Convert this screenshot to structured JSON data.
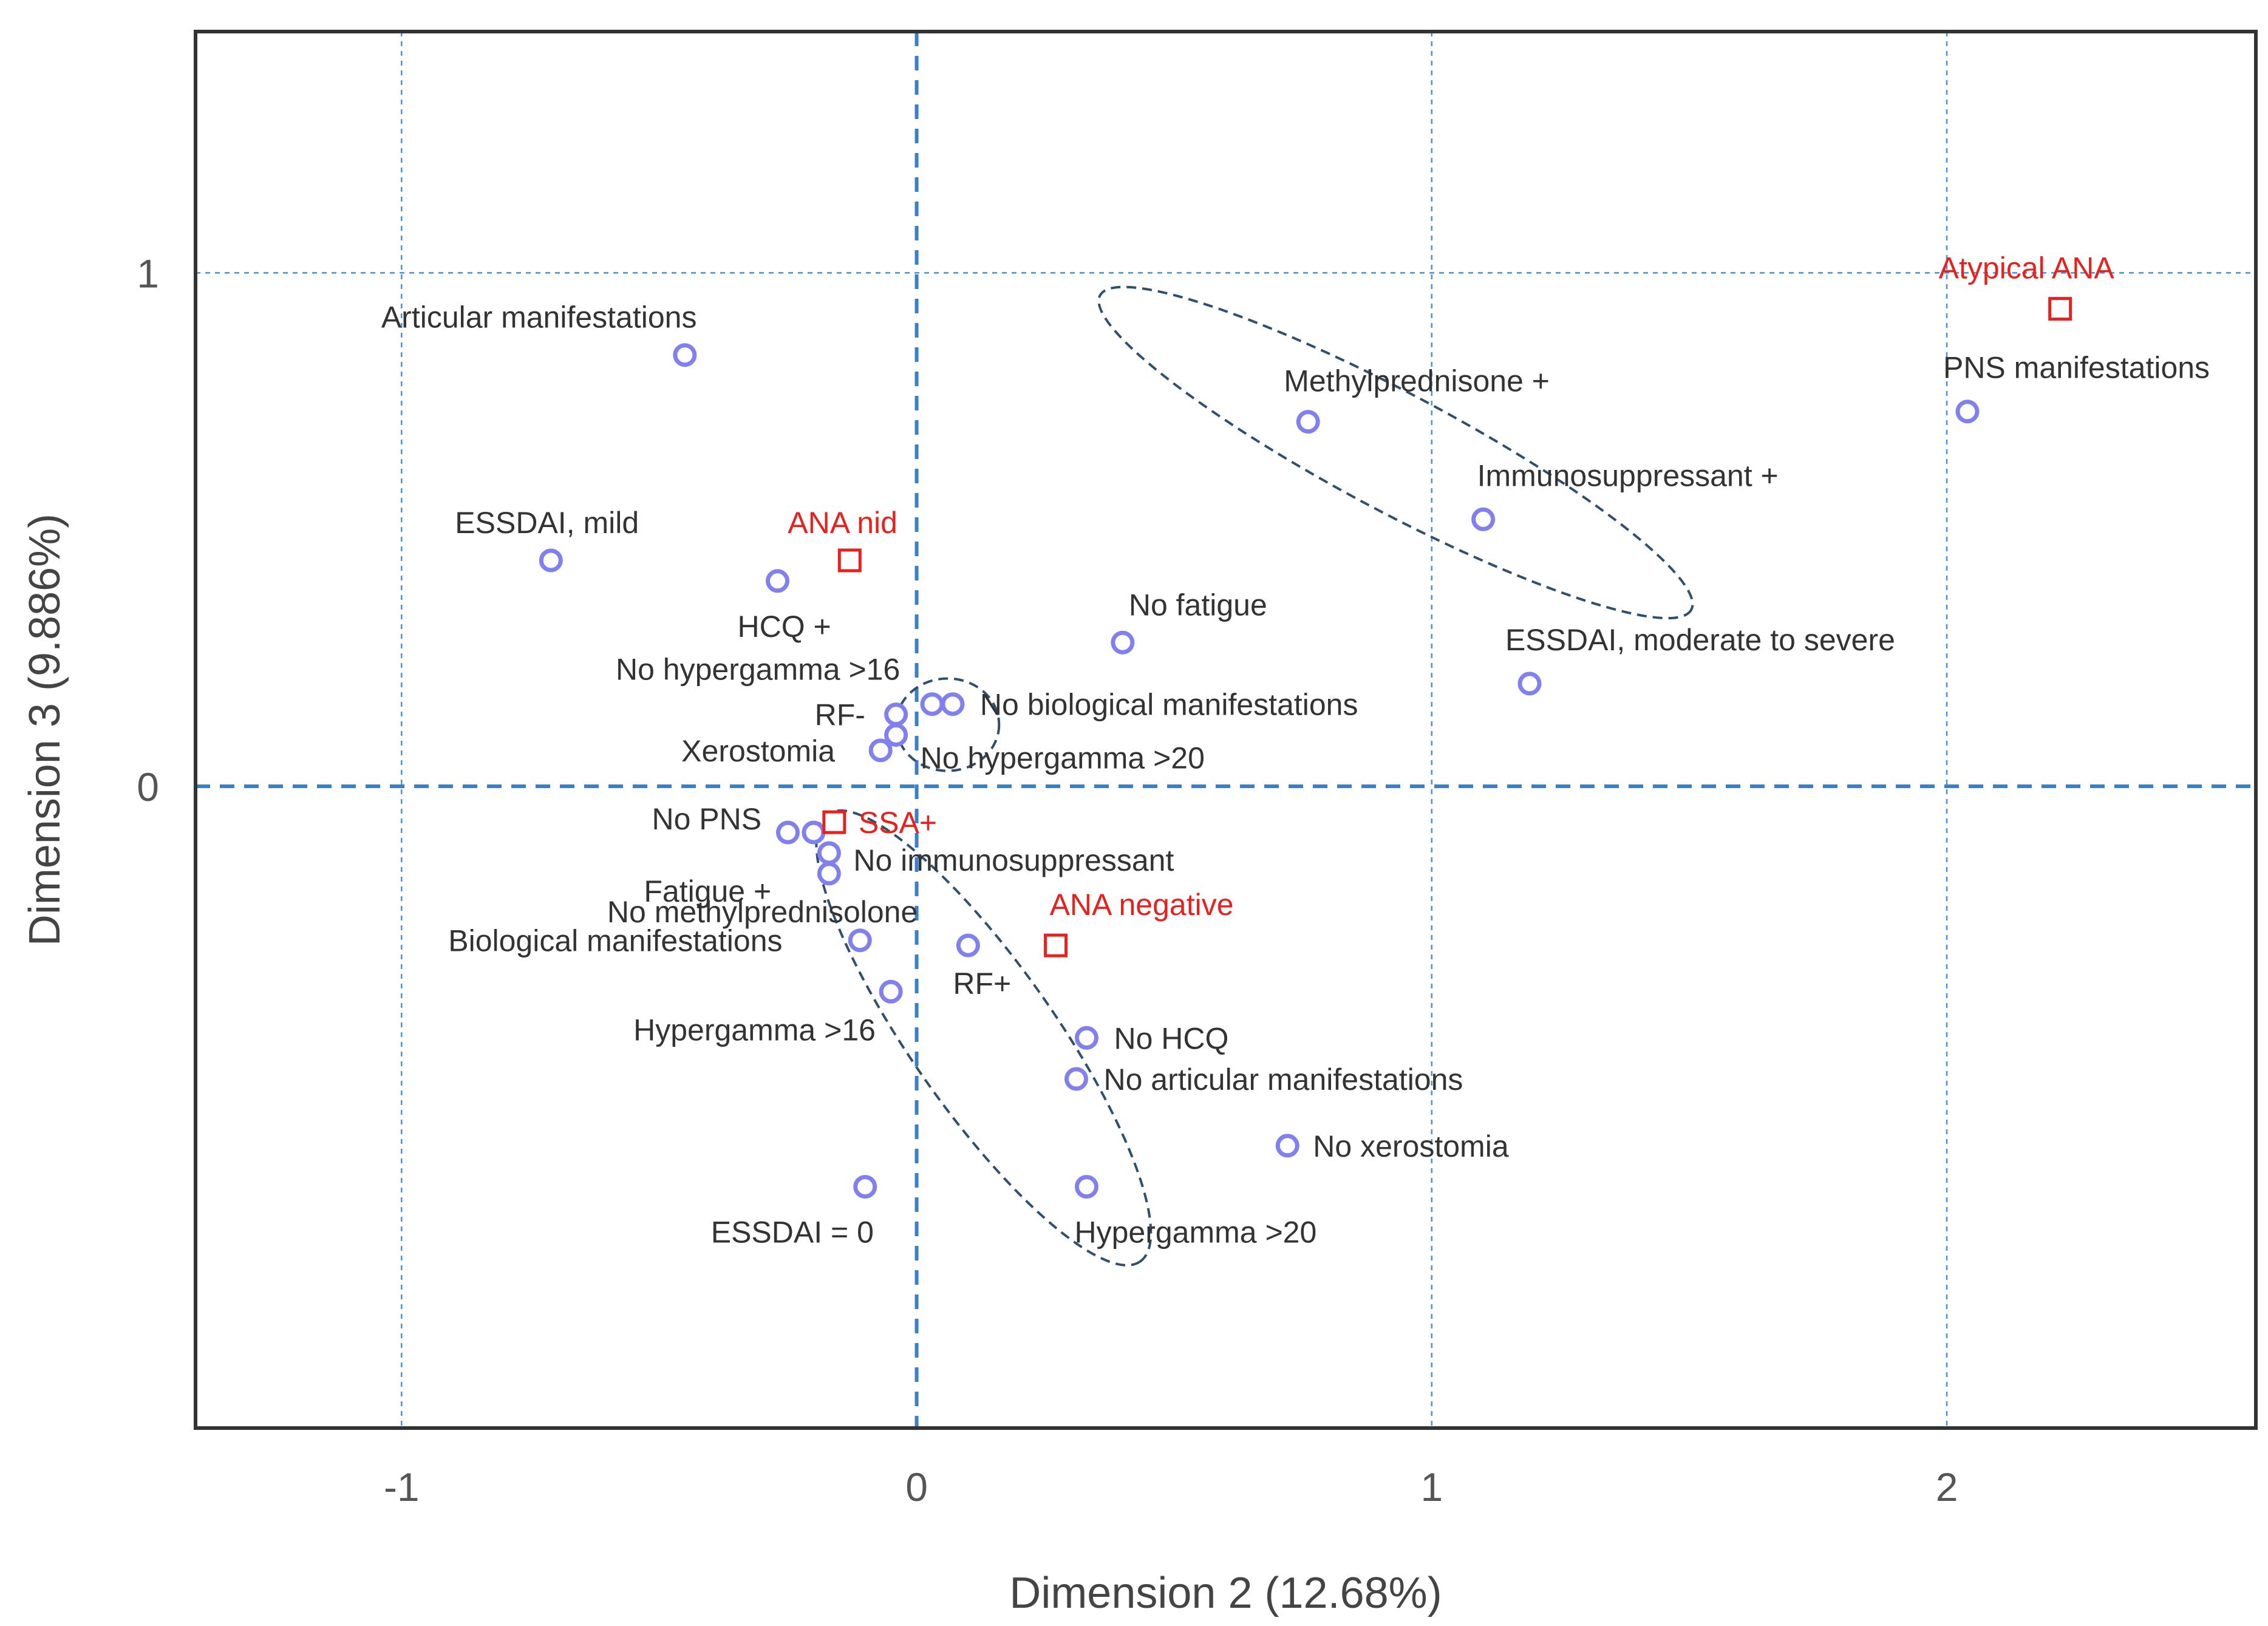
{
  "chart_data": {
    "type": "scatter",
    "title": "",
    "xlabel": "Dimension 2 (12.68%)",
    "ylabel": "Dimension 3 (9.886%)",
    "xlim": [
      -1.4,
      2.6
    ],
    "ylim": [
      -1.25,
      1.47
    ],
    "x_ticks": [
      {
        "value": -1,
        "label": "-1"
      },
      {
        "value": 0,
        "label": "0"
      },
      {
        "value": 1,
        "label": "1"
      },
      {
        "value": 2,
        "label": "2"
      }
    ],
    "y_ticks": [
      {
        "value": 0,
        "label": "0"
      },
      {
        "value": 1,
        "label": "1"
      }
    ],
    "grid": true,
    "series": [
      {
        "name": "Clinical variables",
        "marker": "circle",
        "color": "#8080ee",
        "points": [
          {
            "label": "Articular manifestations",
            "x": -0.45,
            "y": 0.84
          },
          {
            "label": "ESSDAI, mild",
            "x": -0.71,
            "y": 0.44
          },
          {
            "label": "HCQ +",
            "x": -0.27,
            "y": 0.4
          },
          {
            "label": "No fatigue",
            "x": 0.4,
            "y": 0.28
          },
          {
            "label": "Methylprednisone +",
            "x": 0.76,
            "y": 0.71
          },
          {
            "label": "Immunosuppressant +",
            "x": 1.1,
            "y": 0.52
          },
          {
            "label": "ESSDAI, moderate to severe",
            "x": 1.19,
            "y": 0.2
          },
          {
            "label": "PNS manifestations",
            "x": 2.04,
            "y": 0.73
          },
          {
            "label": "No hypergamma >16",
            "x": 0.03,
            "y": 0.16
          },
          {
            "label": "No biological manifestations",
            "x": 0.07,
            "y": 0.16
          },
          {
            "label": "RF-",
            "x": -0.04,
            "y": 0.14
          },
          {
            "label": "No hypergamma >20",
            "x": -0.04,
            "y": 0.1
          },
          {
            "label": "Xerostomia",
            "x": -0.07,
            "y": 0.07
          },
          {
            "label": "No PNS",
            "x": -0.25,
            "y": -0.09
          },
          {
            "label": "No methylprednisolone",
            "x": -0.2,
            "y": -0.09
          },
          {
            "label": "Fatigue +",
            "x": -0.17,
            "y": -0.13
          },
          {
            "label": "No immunosuppressant",
            "x": -0.17,
            "y": -0.17
          },
          {
            "label": "Biological manifestations",
            "x": -0.11,
            "y": -0.3
          },
          {
            "label": "RF+",
            "x": 0.1,
            "y": -0.31
          },
          {
            "label": "Hypergamma >16",
            "x": -0.05,
            "y": -0.4
          },
          {
            "label": "No HCQ",
            "x": 0.33,
            "y": -0.49
          },
          {
            "label": "No articular manifestations",
            "x": 0.31,
            "y": -0.57
          },
          {
            "label": "No xerostomia",
            "x": 0.72,
            "y": -0.7
          },
          {
            "label": "ESSDAI = 0",
            "x": -0.1,
            "y": -0.78
          },
          {
            "label": "Hypergamma >20",
            "x": 0.33,
            "y": -0.78
          }
        ]
      },
      {
        "name": "ANA patterns",
        "marker": "square",
        "color": "#e8201e",
        "points": [
          {
            "label": "Atypical ANA",
            "x": 2.22,
            "y": 0.93
          },
          {
            "label": "ANA nid",
            "x": -0.13,
            "y": 0.44
          },
          {
            "label": "SSA+",
            "x": -0.16,
            "y": -0.07
          },
          {
            "label": "ANA negative",
            "x": 0.27,
            "y": -0.31
          }
        ]
      }
    ],
    "ellipses": [
      {
        "cx": 0.93,
        "cy": 0.65,
        "rx": 0.65,
        "ry": 0.115,
        "rotation_deg": 28
      },
      {
        "cx": 0.06,
        "cy": 0.12,
        "rx": 0.1,
        "ry": 0.09,
        "rotation_deg": 0
      },
      {
        "cx": 0.13,
        "cy": -0.49,
        "rx": 0.53,
        "ry": 0.14,
        "rotation_deg": 55
      }
    ]
  },
  "colors": {
    "circle_marker": "#8080ee",
    "square_marker": "#e8201e",
    "zero_line": "#3a7fc8",
    "grid": "#4a90d9",
    "ellipse": "#2f4f6f",
    "frame": "#333333"
  }
}
